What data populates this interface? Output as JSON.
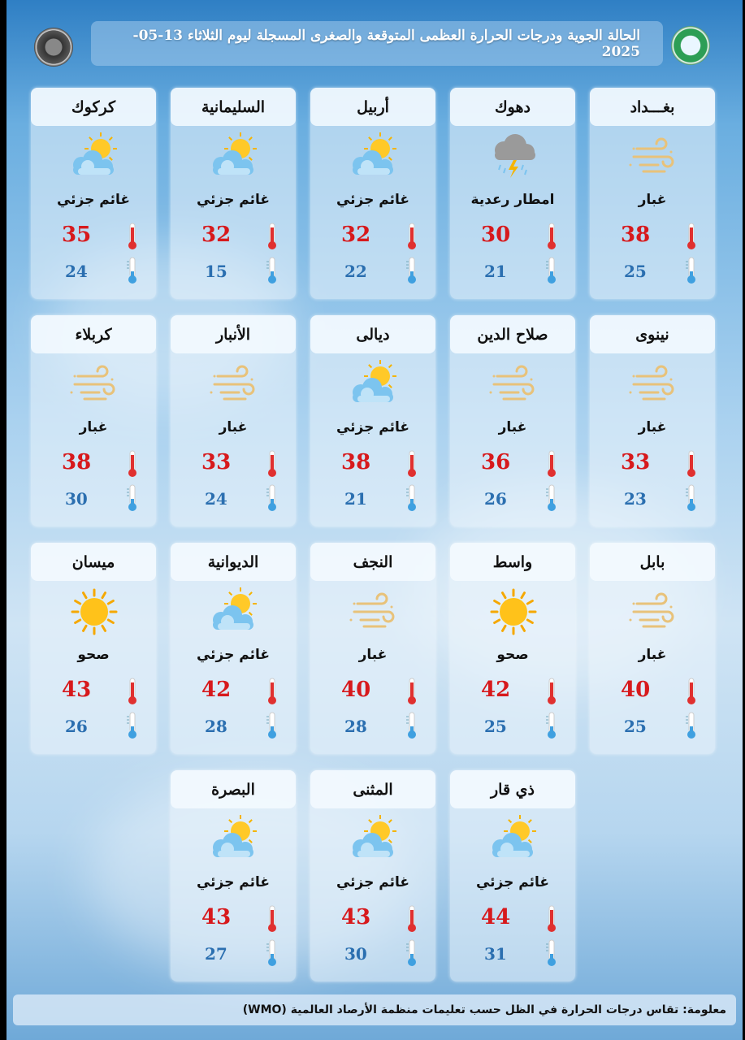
{
  "header": {
    "title": "الحالة الجوية ودرجات الحرارة العظمى المتوقعة والصغرى المسجلة ليوم الثلاثاء 13-05-2025"
  },
  "colors": {
    "max": "#d7191c",
    "min": "#2b6fb0"
  },
  "cities": [
    {
      "name": "بغـــداد",
      "condition": "غبار",
      "icon": "dust-icon",
      "max": "38",
      "min": "25"
    },
    {
      "name": "دهوك",
      "condition": "امطار رعدية",
      "icon": "thunderstorm-icon",
      "max": "30",
      "min": "21"
    },
    {
      "name": "أربيل",
      "condition": "غائم جزئي",
      "icon": "partly-cloudy-icon",
      "max": "32",
      "min": "22"
    },
    {
      "name": "السليمانية",
      "condition": "غائم جزئي",
      "icon": "partly-cloudy-icon",
      "max": "32",
      "min": "15"
    },
    {
      "name": "كركوك",
      "condition": "غائم جزئي",
      "icon": "partly-cloudy-icon",
      "max": "35",
      "min": "24"
    },
    {
      "name": "نينوى",
      "condition": "غبار",
      "icon": "dust-icon",
      "max": "33",
      "min": "23"
    },
    {
      "name": "صلاح الدين",
      "condition": "غبار",
      "icon": "dust-icon",
      "max": "36",
      "min": "26"
    },
    {
      "name": "ديالى",
      "condition": "غائم جزئي",
      "icon": "partly-cloudy-icon",
      "max": "38",
      "min": "21"
    },
    {
      "name": "الأنبار",
      "condition": "غبار",
      "icon": "dust-icon",
      "max": "33",
      "min": "24"
    },
    {
      "name": "كربلاء",
      "condition": "غبار",
      "icon": "dust-icon",
      "max": "38",
      "min": "30"
    },
    {
      "name": "بابل",
      "condition": "غبار",
      "icon": "dust-icon",
      "max": "40",
      "min": "25"
    },
    {
      "name": "واسط",
      "condition": "صحو",
      "icon": "sunny-icon",
      "max": "42",
      "min": "25"
    },
    {
      "name": "النجف",
      "condition": "غبار",
      "icon": "dust-icon",
      "max": "40",
      "min": "28"
    },
    {
      "name": "الديوانية",
      "condition": "غائم جزئي",
      "icon": "partly-cloudy-icon",
      "max": "42",
      "min": "28"
    },
    {
      "name": "ميسان",
      "condition": "صحو",
      "icon": "sunny-icon",
      "max": "43",
      "min": "26"
    },
    {
      "name": "ذي قار",
      "condition": "غائم جزئي",
      "icon": "partly-cloudy-icon",
      "max": "44",
      "min": "31"
    },
    {
      "name": "المثنى",
      "condition": "غائم جزئي",
      "icon": "partly-cloudy-icon",
      "max": "43",
      "min": "30"
    },
    {
      "name": "البصرة",
      "condition": "غائم جزئي",
      "icon": "partly-cloudy-icon",
      "max": "43",
      "min": "27"
    }
  ],
  "footer": {
    "note": "معلومة: تقاس درجات الحرارة في الظل حسب تعليمات منظمة الأرصاد العالمية (WMO)"
  }
}
